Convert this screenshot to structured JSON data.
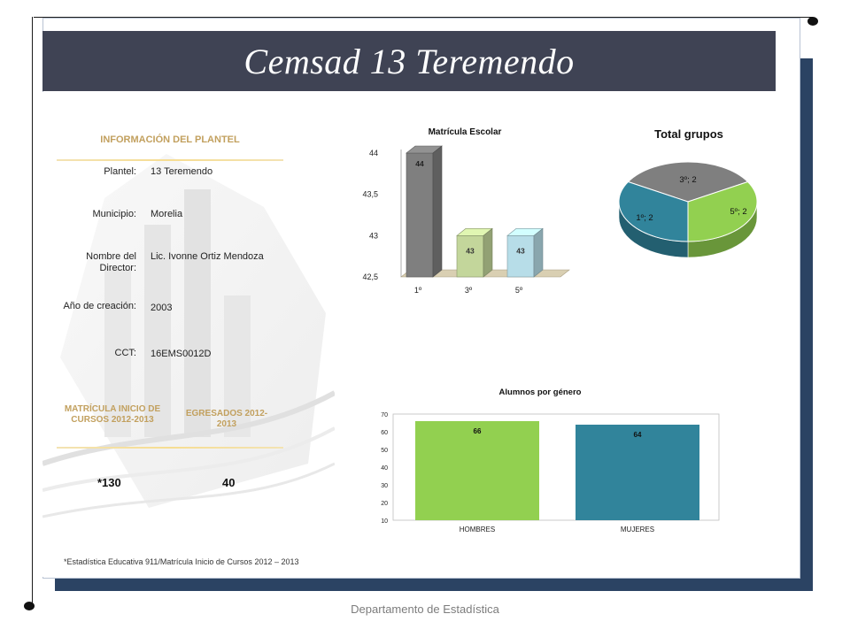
{
  "header": {
    "title": "Cemsad 13 Teremendo"
  },
  "info": {
    "heading": "INFORMACIÓN DEL PLANTEL",
    "rows": [
      {
        "label": "Plantel:",
        "value": "13 Teremendo"
      },
      {
        "label": "Municipio:",
        "value": "Morelia"
      },
      {
        "label": "Nombre del Director:",
        "value": "Lic. Ivonne Ortiz Mendoza"
      },
      {
        "label": "Año de creación:",
        "value": "2003"
      },
      {
        "label": "CCT:",
        "value": "16EMS0012D"
      }
    ]
  },
  "stats": {
    "matricula_heading": "MATRÍCULA INICIO DE CURSOS 2012-2013",
    "egresados_heading": "EGRESADOS 2012-2013",
    "matricula_value": "*130",
    "egresados_value": "40"
  },
  "footnote": "*Estadística Educativa 911/Matrícula Inicio de Cursos 2012 – 2013",
  "footer": "Departamento de Estadística",
  "colors": {
    "title_bg": "#3f4354",
    "frame": "#2b4363",
    "gold": "#c2a05e",
    "green": "#92d050",
    "teal": "#31849b",
    "gray": "#808080"
  },
  "chart_data": [
    {
      "type": "bar",
      "title": "Matrícula Escolar",
      "categories": [
        "1º",
        "3º",
        "5º"
      ],
      "values": [
        44,
        43,
        43
      ],
      "ylim": [
        42.5,
        44
      ],
      "yticks": [
        "44",
        "43,5",
        "43",
        "42,5"
      ],
      "colors": [
        "#7f7f7f",
        "#c3d69b",
        "#b7dde8"
      ]
    },
    {
      "type": "pie",
      "title": "Total grupos",
      "slices": [
        {
          "label": "3º; 2",
          "value": 2,
          "color": "#7f7f7f"
        },
        {
          "label": "5º; 2",
          "value": 2,
          "color": "#92d050"
        },
        {
          "label": "1º; 2",
          "value": 2,
          "color": "#31849b"
        }
      ]
    },
    {
      "type": "bar",
      "title": "Alumnos por género",
      "categories": [
        "HOMBRES",
        "MUJERES"
      ],
      "values": [
        66,
        64
      ],
      "ylim": [
        10,
        70
      ],
      "yticks": [
        "70",
        "60",
        "50",
        "40",
        "30",
        "20",
        "10"
      ],
      "colors": [
        "#92d050",
        "#31849b"
      ]
    }
  ]
}
